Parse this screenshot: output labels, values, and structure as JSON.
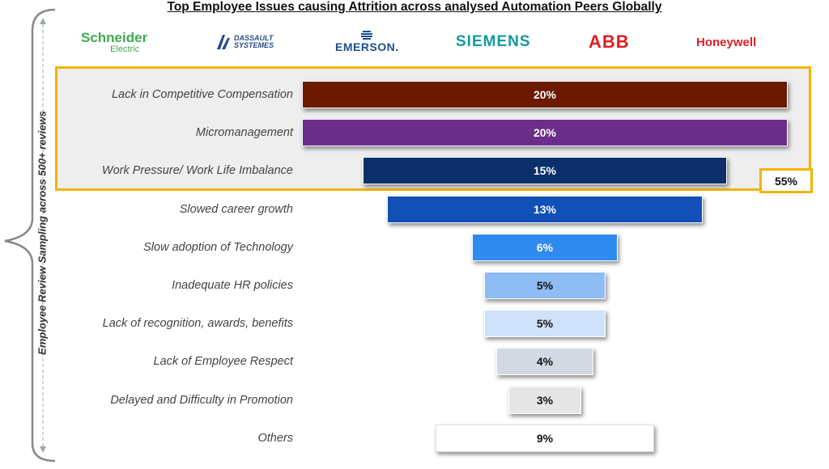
{
  "title": "Top Employee Issues causing Attrition across analysed Automation Peers Globally",
  "side_label": "Employee Review Sampling across 500+ reviews",
  "logos": {
    "schneider": {
      "line1": "Schneider",
      "line2": "Electric"
    },
    "dassault": {
      "line1": "DASSAULT",
      "line2": "SYSTEMES"
    },
    "emerson": "EMERSON.",
    "siemens": "SIEMENS",
    "abb": "ABB",
    "honeywell": "Honeywell"
  },
  "colors": {
    "highlight_border": "#f5b400",
    "highlight_bg": "#eeeeee"
  },
  "chart_data": {
    "type": "bar",
    "orientation": "horizontal-funnel",
    "categories": [
      "Lack in Competitive Compensation",
      "Micromanagement",
      "Work Pressure/ Work Life Imbalance",
      "Slowed career growth",
      "Slow adoption of Technology",
      "Inadequate HR policies",
      "Lack of recognition, awards, benefits",
      "Lack of Employee Respect",
      "Delayed and Difficulty in Promotion",
      "Others"
    ],
    "values": [
      20,
      20,
      15,
      13,
      6,
      5,
      5,
      4,
      3,
      9
    ],
    "value_labels": [
      "20%",
      "20%",
      "15%",
      "13%",
      "6%",
      "5%",
      "5%",
      "4%",
      "3%",
      "9%"
    ],
    "bar_colors": [
      "#6b1a00",
      "#6a2e8a",
      "#0c2f6b",
      "#1150b7",
      "#2f8af0",
      "#8fbcf5",
      "#cfe2fa",
      "#d3d9e3",
      "#e6e6e6",
      "#ffffff"
    ],
    "label_colors": [
      "#ffffff",
      "#ffffff",
      "#ffffff",
      "#ffffff",
      "#ffffff",
      "#111111",
      "#111111",
      "#111111",
      "#111111",
      "#111111"
    ],
    "highlight": {
      "categories_count": 3,
      "total_label": "55%"
    }
  }
}
